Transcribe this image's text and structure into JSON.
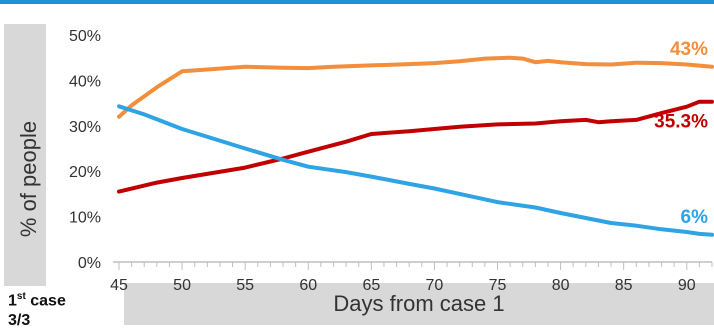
{
  "chart_data": {
    "type": "line",
    "title": "",
    "ylabel": "% of people",
    "xlabel": "Days from case 1",
    "xlim": [
      45,
      92
    ],
    "ylim": [
      0,
      50
    ],
    "x_ticks": [
      45,
      50,
      55,
      60,
      65,
      70,
      75,
      80,
      85,
      90
    ],
    "y_ticks": [
      0,
      10,
      20,
      30,
      40,
      50
    ],
    "y_tick_labels": [
      "0%",
      "10%",
      "20%",
      "30%",
      "40%",
      "50%"
    ],
    "grid": false,
    "series": [
      {
        "color": "#f28e3c",
        "end_label": "43%",
        "points": [
          [
            45,
            32
          ],
          [
            46,
            34.5
          ],
          [
            48,
            38.5
          ],
          [
            50,
            42
          ],
          [
            52,
            42.4
          ],
          [
            55,
            43
          ],
          [
            58,
            42.8
          ],
          [
            60,
            42.7
          ],
          [
            62,
            43
          ],
          [
            65,
            43.3
          ],
          [
            68,
            43.6
          ],
          [
            70,
            43.8
          ],
          [
            72,
            44.2
          ],
          [
            74,
            44.8
          ],
          [
            76,
            45
          ],
          [
            77,
            44.8
          ],
          [
            78,
            44
          ],
          [
            79,
            44.3
          ],
          [
            80,
            44
          ],
          [
            82,
            43.6
          ],
          [
            84,
            43.5
          ],
          [
            86,
            43.9
          ],
          [
            88,
            43.8
          ],
          [
            90,
            43.5
          ],
          [
            92,
            43
          ]
        ]
      },
      {
        "color": "#c00000",
        "end_label": "35.3%",
        "points": [
          [
            45,
            15.5
          ],
          [
            48,
            17.5
          ],
          [
            50,
            18.5
          ],
          [
            55,
            20.8
          ],
          [
            58,
            22.8
          ],
          [
            60,
            24.3
          ],
          [
            63,
            26.5
          ],
          [
            65,
            28.2
          ],
          [
            68,
            28.8
          ],
          [
            70,
            29.3
          ],
          [
            72,
            29.8
          ],
          [
            75,
            30.3
          ],
          [
            78,
            30.5
          ],
          [
            80,
            31
          ],
          [
            82,
            31.3
          ],
          [
            83,
            30.8
          ],
          [
            84,
            31
          ],
          [
            86,
            31.3
          ],
          [
            88,
            32.8
          ],
          [
            90,
            34.2
          ],
          [
            91,
            35.3
          ],
          [
            92,
            35.3
          ]
        ]
      },
      {
        "color": "#2fa3e3",
        "end_label": "6%",
        "points": [
          [
            45,
            34.3
          ],
          [
            47,
            32.5
          ],
          [
            50,
            29.3
          ],
          [
            55,
            25
          ],
          [
            58,
            22.5
          ],
          [
            60,
            21
          ],
          [
            63,
            19.8
          ],
          [
            65,
            18.8
          ],
          [
            68,
            17.2
          ],
          [
            70,
            16.2
          ],
          [
            72,
            15
          ],
          [
            75,
            13.2
          ],
          [
            78,
            12
          ],
          [
            80,
            10.8
          ],
          [
            82,
            9.7
          ],
          [
            84,
            8.6
          ],
          [
            86,
            8
          ],
          [
            88,
            7.2
          ],
          [
            90,
            6.6
          ],
          [
            91,
            6.2
          ],
          [
            92,
            6
          ]
        ]
      }
    ]
  },
  "note": {
    "prefix": "1",
    "sup": "st",
    "suffix": " case",
    "line2": "3/3"
  },
  "colors": {
    "accent_rule": "#1e90d6",
    "label_box": "#d8d8d8"
  }
}
